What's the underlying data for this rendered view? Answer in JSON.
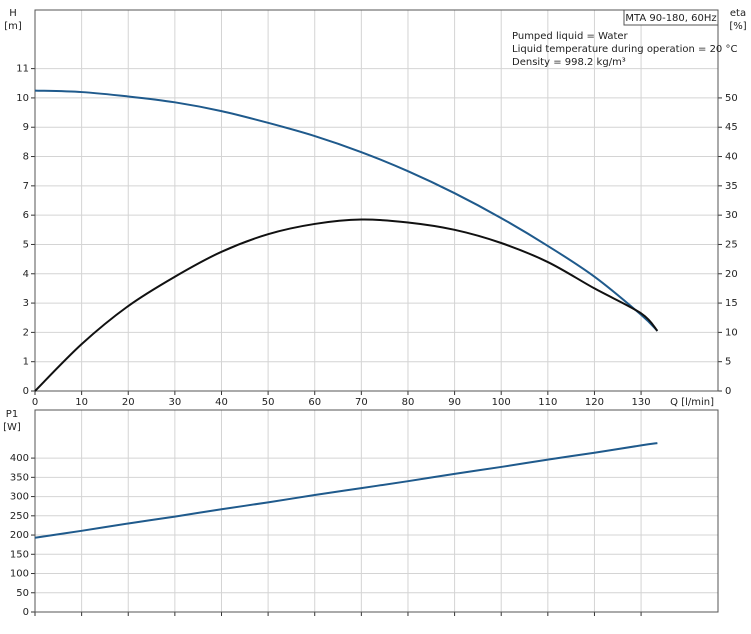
{
  "chart_data": [
    {
      "type": "line",
      "ylabel": "H",
      "yunit": "[m]",
      "y2label": "eta",
      "y2unit": "[%]",
      "xlabel": "Q [l/min]",
      "legend_box": "MTA 90-180, 60Hz",
      "annotations": [
        "Pumped liquid = Water",
        "Liquid temperature during operation = 20 °C",
        "Density = 998.2 kg/m³"
      ],
      "x": [
        0,
        10,
        20,
        30,
        40,
        50,
        60,
        70,
        80,
        90,
        100,
        110,
        120,
        130,
        133.5
      ],
      "xlim": [
        0,
        146.5
      ],
      "xticks": [
        0,
        10,
        20,
        30,
        40,
        50,
        60,
        70,
        80,
        90,
        100,
        110,
        120,
        130
      ],
      "ylim": [
        0,
        13
      ],
      "yticks": [
        0,
        1,
        2,
        3,
        4,
        5,
        6,
        7,
        8,
        9,
        10,
        11
      ],
      "y2lim": [
        0,
        65
      ],
      "y2ticks": [
        0,
        5,
        10,
        15,
        20,
        25,
        30,
        35,
        40,
        45,
        50
      ],
      "grid": true,
      "series": [
        {
          "color": "#1f5a8c",
          "values": [
            10.25,
            10.2,
            10.05,
            9.85,
            9.55,
            9.15,
            8.7,
            8.15,
            7.5,
            6.75,
            5.9,
            4.95,
            3.9,
            2.6,
            2.05
          ]
        },
        {
          "color": "#111111",
          "axis": "y2",
          "values": [
            0,
            8,
            14.5,
            19.5,
            23.75,
            26.75,
            28.5,
            29.25,
            28.75,
            27.5,
            25.25,
            22,
            17.5,
            13.25,
            10.25
          ]
        }
      ]
    },
    {
      "type": "line",
      "ylabel": "P1",
      "yunit": "[W]",
      "x": [
        0,
        10,
        20,
        30,
        40,
        50,
        60,
        70,
        80,
        90,
        100,
        110,
        120,
        130,
        133.5
      ],
      "xlim": [
        0,
        146.5
      ],
      "ylim": [
        0,
        525
      ],
      "yticks": [
        0,
        50,
        100,
        150,
        200,
        250,
        300,
        350,
        400
      ],
      "grid": true,
      "series": [
        {
          "color": "#1f5a8c",
          "values": [
            193,
            211,
            230,
            248,
            267,
            285,
            304,
            322,
            340,
            359,
            377,
            396,
            414,
            433,
            439
          ]
        }
      ]
    }
  ]
}
